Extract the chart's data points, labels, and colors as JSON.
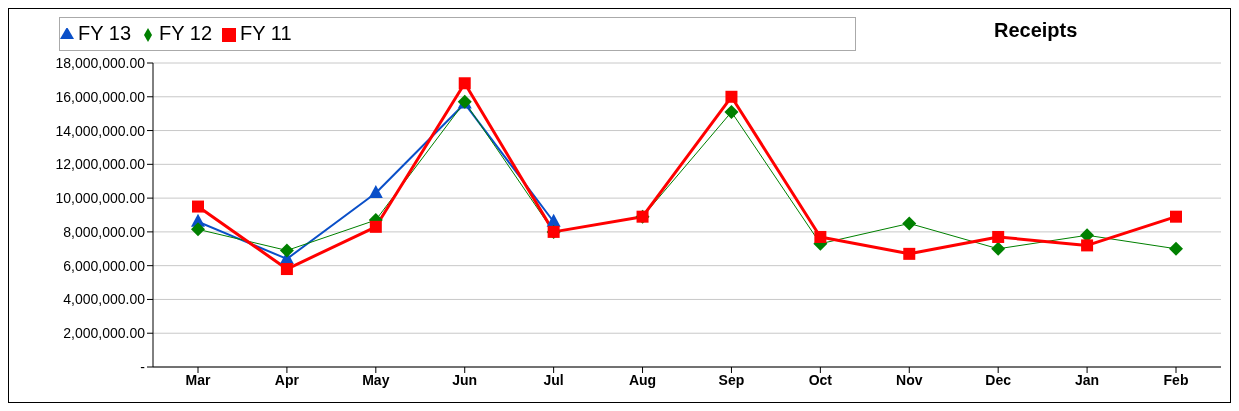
{
  "chart_data": {
    "type": "line",
    "title": "Receipts",
    "categories": [
      "Mar",
      "Apr",
      "May",
      "Jun",
      "Jul",
      "Aug",
      "Sep",
      "Oct",
      "Nov",
      "Dec",
      "Jan",
      "Feb"
    ],
    "series": [
      {
        "name": "FY 13",
        "color": "#0a4fc8",
        "marker": "triangle",
        "values": [
          8600000,
          6400000,
          10300000,
          15600000,
          8600000,
          null,
          null,
          null,
          null,
          null,
          null,
          null
        ]
      },
      {
        "name": "FY 12",
        "color": "#008000",
        "marker": "diamond",
        "values": [
          8150000,
          6900000,
          8700000,
          15700000,
          8000000,
          8900000,
          15100000,
          7300000,
          8500000,
          7000000,
          7800000,
          7000000
        ]
      },
      {
        "name": "FY 11",
        "color": "#ff0000",
        "marker": "square",
        "values": [
          9500000,
          5800000,
          8300000,
          16800000,
          8000000,
          8900000,
          16000000,
          7700000,
          6700000,
          7700000,
          7200000,
          8900000
        ]
      }
    ],
    "ylim": [
      0,
      18000000
    ],
    "yticks": [
      {
        "value": 0,
        "label": "-"
      },
      {
        "value": 2000000,
        "label": "2,000,000.00"
      },
      {
        "value": 4000000,
        "label": "4,000,000.00"
      },
      {
        "value": 6000000,
        "label": "6,000,000.00"
      },
      {
        "value": 8000000,
        "label": "8,000,000.00"
      },
      {
        "value": 10000000,
        "label": "10,000,000.00"
      },
      {
        "value": 12000000,
        "label": "12,000,000.00"
      },
      {
        "value": 14000000,
        "label": "14,000,000.00"
      },
      {
        "value": 16000000,
        "label": "16,000,000.00"
      },
      {
        "value": 18000000,
        "label": "18,000,000.00"
      }
    ],
    "grid": "y",
    "legend": "top",
    "line_style": "solid"
  }
}
